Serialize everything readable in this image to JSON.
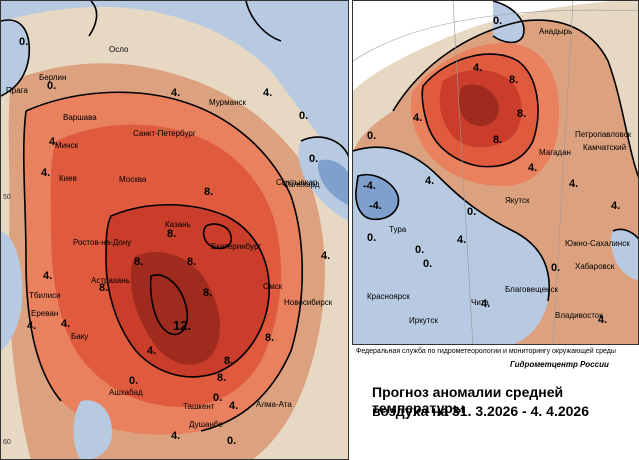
{
  "map_left": {
    "cities": [
      "Осло",
      "Берлин",
      "Прага",
      "Варшава",
      "Мурманск",
      "Санкт-Петербург",
      "Минск",
      "Киев",
      "Москва",
      "Казань",
      "Сыктывкар",
      "Екатеринбург",
      "Ростов-на-Дону",
      "Астрахань",
      "Тбилиси",
      "Ереван",
      "Баку",
      "Омск",
      "Новосибирск",
      "Ашхабад",
      "Ташкент",
      "Алма-Ата",
      "Душанбе",
      "Салехард"
    ],
    "isolines": [
      "0.",
      "0.",
      "4.",
      "4.",
      "0.",
      "4.",
      "0.",
      "4.",
      "8.",
      "8.",
      "8.",
      "8.",
      "8.",
      "12.",
      "8.",
      "8.",
      "4.",
      "8.",
      "4.",
      "4.",
      "4.",
      "8.",
      "0.",
      "4.",
      "4.",
      "0.",
      "0.",
      "4."
    ],
    "axis_marks": [
      "50",
      "60"
    ]
  },
  "map_right": {
    "cities": [
      "Анадырь",
      "Магадан",
      "Петропавловск",
      "Камчатский",
      "Якутск",
      "Тура",
      "Красноярск",
      "Иркутск",
      "Чита",
      "Благовещенск",
      "Хабаровск",
      "Южно-Сахалинск",
      "Владивосток"
    ],
    "isolines": [
      "0.",
      "4.",
      "8.",
      "8.",
      "8.",
      "4.",
      "0.",
      "4.",
      "-4.",
      "-4.",
      "0.",
      "0.",
      "0.",
      "0.",
      "4.",
      "4.",
      "4.",
      "0.",
      "4.",
      "4.",
      "4."
    ]
  },
  "credit": "Федеральная служба по гидрометеорологии и мониторингу окружающей среды",
  "org": "Гидрометцентр России",
  "title_line1": "Прогноз аномалии средней температуры",
  "title_line2": "воздуха на",
  "dates": "31. 3.2026  -  4. 4.2026",
  "colors": {
    "neg": "#b8c9e2",
    "neg_strong": "#7fa0cc",
    "near_zero": "#e7d8c4",
    "pos1": "#dca27f",
    "pos2": "#e9805e",
    "pos3": "#e05a3e",
    "pos4": "#c93d2a",
    "pos5": "#9e2b1e"
  }
}
